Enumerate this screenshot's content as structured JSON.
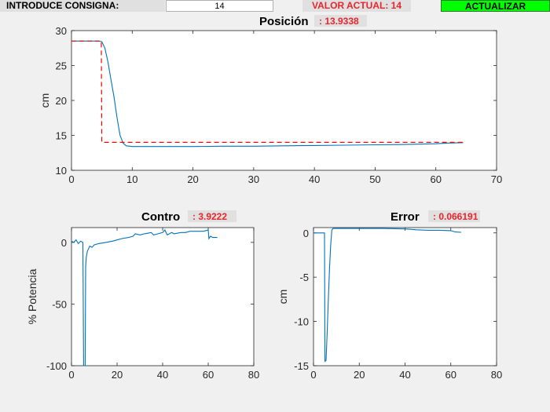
{
  "controls": {
    "consigna_label": "INTRODUCE CONSIGNA:",
    "consigna_value": "14",
    "valor_actual": "VALOR ACTUAL: 14",
    "actualizar_label": "ACTUALIZAR"
  },
  "colors": {
    "background": "#f0f0f0",
    "series_blue": "#0072bd",
    "setpoint_red": "#ff0000",
    "readout_red": "#e8242c",
    "button_green": "#00ff00"
  },
  "chart_data": [
    {
      "type": "line",
      "title": "Posición",
      "readout": ": 13.9338",
      "xlabel": "",
      "ylabel": "cm",
      "xlim": [
        0,
        70
      ],
      "ylim": [
        10,
        30
      ],
      "xticks": [
        "0",
        "10",
        "20",
        "30",
        "40",
        "50",
        "60",
        "70"
      ],
      "yticks": [
        "10",
        "15",
        "20",
        "25",
        "30"
      ],
      "series": [
        {
          "style": "solid",
          "color": "#0072bd",
          "x": [
            0,
            4.5,
            5,
            5.5,
            6,
            6.5,
            7,
            7.5,
            8,
            8.5,
            9,
            10,
            12,
            15,
            20,
            25,
            30,
            35,
            40,
            45,
            50,
            55,
            60,
            62,
            64.5
          ],
          "y": [
            28.5,
            28.5,
            28.4,
            27.5,
            25.5,
            23,
            20.5,
            17.5,
            15,
            13.9,
            13.5,
            13.4,
            13.4,
            13.4,
            13.4,
            13.45,
            13.45,
            13.5,
            13.55,
            13.6,
            13.65,
            13.7,
            13.8,
            13.9,
            13.95
          ]
        },
        {
          "style": "dashed",
          "color": "#ff0000",
          "x": [
            0,
            4.9,
            5.0,
            64.5
          ],
          "y": [
            28.5,
            28.5,
            14,
            14
          ]
        }
      ]
    },
    {
      "type": "line",
      "title": "Contro",
      "readout": ": 3.9222",
      "xlabel": "",
      "ylabel": "% Potencia",
      "xlim": [
        0,
        80
      ],
      "ylim": [
        -100,
        12
      ],
      "xticks": [
        "0",
        "20",
        "40",
        "60",
        "80"
      ],
      "yticks": [
        "-100",
        "-50",
        "0"
      ],
      "series": [
        {
          "style": "solid",
          "color": "#0072bd",
          "x": [
            0,
            1,
            2,
            3,
            4,
            5,
            5.3,
            5.6,
            6,
            6.2,
            6.5,
            7,
            7.5,
            8,
            9,
            10,
            12,
            15,
            18,
            20,
            22,
            25,
            27,
            28,
            30,
            32,
            35,
            36,
            38,
            40,
            41,
            42,
            44,
            45,
            48,
            50,
            52,
            55,
            58,
            60,
            60.3,
            61,
            62,
            64
          ],
          "y": [
            1,
            0,
            2,
            -1,
            1,
            0,
            -100,
            -100,
            -100,
            -20,
            -12,
            -7,
            -5,
            -3,
            -4,
            -2,
            -1,
            0,
            1,
            2,
            3,
            4,
            5,
            7,
            6,
            7,
            8,
            6,
            7,
            8,
            10,
            6,
            8,
            7,
            8,
            8,
            9,
            9,
            9,
            10,
            3,
            5,
            4,
            4
          ]
        }
      ]
    },
    {
      "type": "line",
      "title": "Error",
      "readout": ": 0.066191",
      "xlabel": "",
      "ylabel": "cm",
      "xlim": [
        0,
        80
      ],
      "ylim": [
        -15,
        0.6
      ],
      "xticks": [
        "0",
        "20",
        "40",
        "60",
        "80"
      ],
      "yticks": [
        "-15",
        "-10",
        "-5",
        "0"
      ],
      "series": [
        {
          "style": "solid",
          "color": "#0072bd",
          "x": [
            0,
            4.8,
            5,
            5.5,
            6,
            6.5,
            7,
            7.5,
            8,
            8.5,
            9,
            10,
            15,
            20,
            30,
            40,
            45,
            50,
            55,
            60,
            62,
            64.5
          ],
          "y": [
            0,
            0,
            -14.5,
            -14.4,
            -11,
            -7.5,
            -4,
            -1.5,
            0.3,
            0.5,
            0.5,
            0.5,
            0.5,
            0.5,
            0.5,
            0.45,
            0.35,
            0.3,
            0.3,
            0.25,
            0.1,
            0.07
          ]
        }
      ]
    }
  ]
}
